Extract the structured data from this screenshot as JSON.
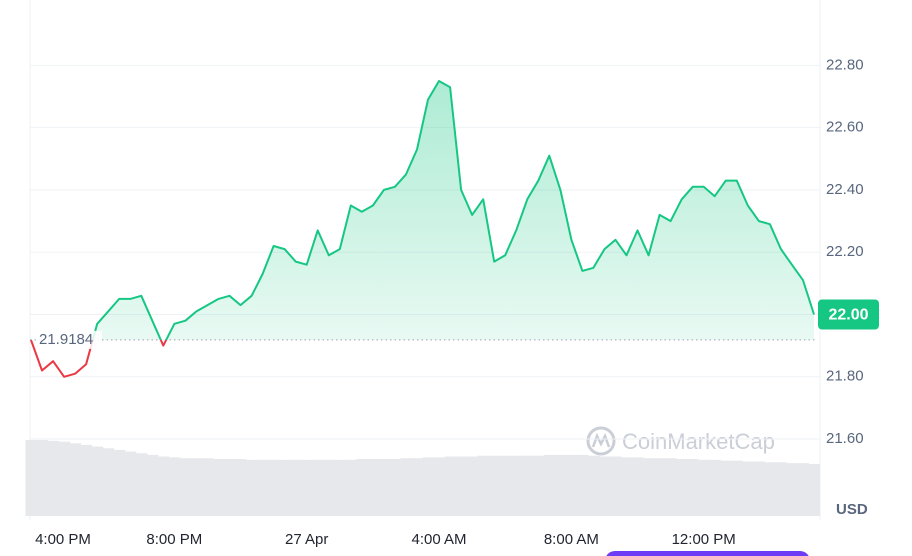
{
  "chart_data": {
    "type": "line",
    "categories": [
      null,
      "4:00 PM",
      null,
      null,
      null,
      null,
      null,
      null,
      null,
      null,
      null,
      null,
      null,
      "8:00 PM",
      null,
      null,
      null,
      null,
      null,
      null,
      null,
      null,
      null,
      null,
      null,
      "27 Apr",
      null,
      null,
      null,
      null,
      null,
      null,
      null,
      null,
      null,
      null,
      null,
      "4:00 AM",
      null,
      null,
      null,
      null,
      null,
      null,
      null,
      null,
      null,
      null,
      null,
      "8:00 AM",
      null,
      null,
      null,
      null,
      null,
      null,
      null,
      null,
      null,
      null,
      null,
      "12:00 PM",
      null,
      null,
      null,
      null,
      null,
      null,
      null,
      null,
      null,
      null
    ],
    "series": [
      {
        "color": "#16c784",
        "below_color": "#ea3943",
        "values": [
          21.918,
          21.82,
          21.85,
          21.8,
          21.81,
          21.84,
          21.97,
          22.01,
          22.05,
          22.05,
          22.06,
          21.98,
          21.9,
          21.97,
          21.98,
          22.01,
          22.03,
          22.05,
          22.06,
          22.03,
          22.06,
          22.13,
          22.22,
          22.21,
          22.17,
          22.16,
          22.27,
          22.19,
          22.21,
          22.35,
          22.33,
          22.35,
          22.4,
          22.41,
          22.45,
          22.53,
          22.69,
          22.75,
          22.73,
          22.4,
          22.32,
          22.37,
          22.17,
          22.19,
          22.27,
          22.37,
          22.43,
          22.51,
          22.4,
          22.24,
          22.14,
          22.15,
          22.21,
          22.24,
          22.19,
          22.27,
          22.19,
          22.32,
          22.3,
          22.37,
          22.41,
          22.41,
          22.38,
          22.43,
          22.43,
          22.35,
          22.3,
          22.29,
          22.21,
          22.16,
          22.11,
          22.0
        ]
      }
    ],
    "volume": {
      "color": "#e6e8ec",
      "values": [
        92,
        92,
        91,
        90,
        88,
        86,
        84,
        82,
        80,
        78,
        76,
        74,
        72,
        71,
        70,
        70,
        70,
        69,
        69,
        69,
        68,
        68,
        68,
        68,
        68,
        68,
        68,
        68,
        68,
        68,
        69,
        69,
        69,
        69,
        70,
        70,
        71,
        71,
        72,
        72,
        72,
        73,
        73,
        73,
        73,
        73,
        73,
        74,
        74,
        74,
        74,
        73,
        72,
        72,
        71,
        71,
        70,
        70,
        70,
        69,
        69,
        68,
        68,
        67,
        67,
        66,
        66,
        65,
        65,
        64,
        64,
        63
      ]
    },
    "baseline": 21.9184,
    "current_price": {
      "value": 22,
      "label": "22.00"
    },
    "ylim": [
      21.34,
      23.01
    ],
    "yticks": [
      {
        "value": 21.6,
        "label": "21.60"
      },
      {
        "value": 21.8,
        "label": "21.80"
      },
      {
        "value": 22.0,
        "label": "22.00"
      },
      {
        "value": 22.2,
        "label": "22.20"
      },
      {
        "value": 22.4,
        "label": "22.40"
      },
      {
        "value": 22.6,
        "label": "22.60"
      },
      {
        "value": 22.8,
        "label": "22.80"
      }
    ],
    "y_axis_unit": "USD",
    "watermark": "CoinMarketCap",
    "grid": true
  }
}
